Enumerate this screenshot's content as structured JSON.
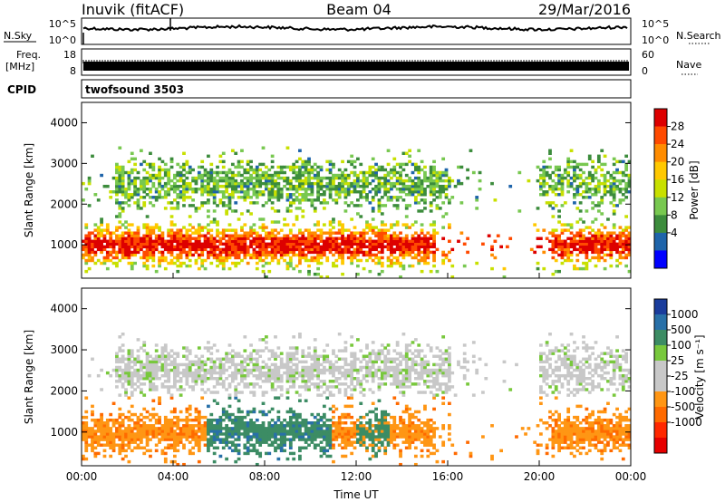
{
  "header": {
    "station": "Inuvik (fitACF)",
    "beam": "Beam 04",
    "date": "29/Mar/2016"
  },
  "top_panels": {
    "nsky_label": "N.Sky",
    "nsky_ticks": [
      "10^5",
      "10^0"
    ],
    "nsearch_label": "N.Search",
    "nsearch_ticks": [
      "10^5",
      "10^0"
    ],
    "freq_label_1": "Freq.",
    "freq_label_2": "[MHz]",
    "freq_ticks": [
      "18",
      "8"
    ],
    "nave_label": "Nave",
    "nave_ticks": [
      "60",
      "0"
    ],
    "cpid_label": "CPID",
    "cpid_value": "twofsound 3503"
  },
  "chart_data": [
    {
      "type": "heatmap",
      "name": "power",
      "ylabel": "Slant Range [km]",
      "yticks": [
        "4000",
        "3000",
        "2000",
        "1000"
      ],
      "ylim": [
        180,
        4500
      ],
      "xlim_hours": [
        0,
        24
      ],
      "colorbar_label": "Power [dB]",
      "colorbar_ticks": [
        "28",
        "24",
        "20",
        "16",
        "12",
        "8",
        "4"
      ],
      "colorbar_colors": [
        "#dd0000",
        "#ff4a00",
        "#ff8c00",
        "#ffc800",
        "#c8e000",
        "#78c850",
        "#3c8c3c",
        "#1e64aa",
        "#0000ff"
      ]
    },
    {
      "type": "heatmap",
      "name": "velocity",
      "ylabel": "Slant Range [km]",
      "yticks": [
        "4000",
        "3000",
        "2000",
        "1000"
      ],
      "ylim": [
        180,
        4500
      ],
      "xlim_hours": [
        0,
        24
      ],
      "xlabel": "Time UT",
      "xticks": [
        "00:00",
        "04:00",
        "08:00",
        "12:00",
        "16:00",
        "20:00",
        "00:00"
      ],
      "colorbar_label": "Velocity [m s⁻¹]",
      "colorbar_ticks": [
        "1000",
        "500",
        "100",
        "25",
        "-25",
        "-100",
        "-500",
        "-1000"
      ],
      "colorbar_colors": [
        "#1a3c9c",
        "#2870a8",
        "#3c8c64",
        "#78c83c",
        "#c8c8c8",
        "#c8c8c8",
        "#ff9614",
        "#ff6a00",
        "#ff2800",
        "#e60000"
      ]
    }
  ]
}
